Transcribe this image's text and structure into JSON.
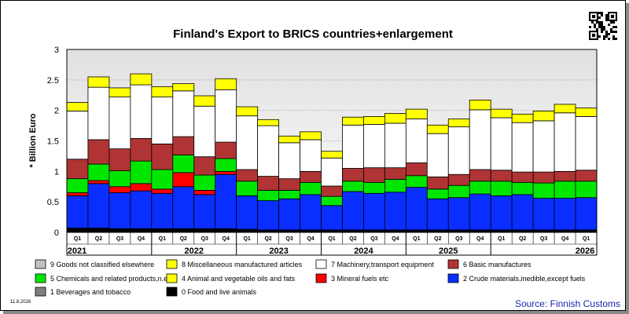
{
  "chart_data": {
    "type": "bar",
    "stacked": true,
    "title": "Finland's Export to BRICS countries+enlargement",
    "ylabel": "* Billion Euro",
    "ylim": [
      0,
      3
    ],
    "yticks": [
      "0",
      "0.5",
      "1",
      "1.5",
      "2",
      "2.5",
      "3"
    ],
    "grid": true,
    "legend_position": "bottom",
    "categories": [
      "Q1",
      "Q2",
      "Q3",
      "Q4",
      "Q1",
      "Q2",
      "Q3",
      "Q4",
      "Q1",
      "Q2",
      "Q3",
      "Q4",
      "Q1",
      "Q2",
      "Q3",
      "Q4",
      "Q1",
      "Q2",
      "Q3",
      "Q4",
      "Q1",
      "Q2",
      "Q3",
      "Q4",
      "Q1"
    ],
    "years": [
      {
        "label": "2021",
        "start": 0,
        "end": 3
      },
      {
        "label": "2022",
        "start": 4,
        "end": 7
      },
      {
        "label": "2023",
        "start": 8,
        "end": 11
      },
      {
        "label": "2024",
        "start": 12,
        "end": 15
      },
      {
        "label": "2025",
        "start": 16,
        "end": 19
      },
      {
        "label": "2026",
        "start": 20,
        "end": 24
      }
    ],
    "series": [
      {
        "name": "0 Food and live animals",
        "color": "#000000",
        "values": [
          0.06,
          0.06,
          0.05,
          0.05,
          0.05,
          0.05,
          0.05,
          0.05,
          0.04,
          0.03,
          0.03,
          0.03,
          0.03,
          0.03,
          0.03,
          0.03,
          0.03,
          0.03,
          0.03,
          0.03,
          0.03,
          0.03,
          0.03,
          0.03,
          0.03
        ]
      },
      {
        "name": "1 Beverages and tobacco",
        "color": "#7f7f7f",
        "values": [
          0.01,
          0.01,
          0.01,
          0.01,
          0.01,
          0.01,
          0.01,
          0.01,
          0.01,
          0.01,
          0.01,
          0.01,
          0.01,
          0.01,
          0.01,
          0.01,
          0.01,
          0.01,
          0.01,
          0.01,
          0.01,
          0.01,
          0.01,
          0.01,
          0.01
        ]
      },
      {
        "name": "2 Crude materials,inedible,except fuels",
        "color": "#0a2eff",
        "values": [
          0.53,
          0.73,
          0.59,
          0.62,
          0.58,
          0.69,
          0.56,
          0.89,
          0.55,
          0.48,
          0.51,
          0.58,
          0.4,
          0.63,
          0.6,
          0.62,
          0.7,
          0.51,
          0.53,
          0.59,
          0.56,
          0.58,
          0.52,
          0.52,
          0.53
        ]
      },
      {
        "name": "3 Mineral fuels etc",
        "color": "#ff0000",
        "values": [
          0.05,
          0.05,
          0.1,
          0.12,
          0.07,
          0.23,
          0.07,
          0.05,
          0.0,
          0.0,
          0.0,
          0.0,
          0.0,
          0.0,
          0.0,
          0.0,
          0.0,
          0.0,
          0.0,
          0.0,
          0.0,
          0.0,
          0.0,
          0.0,
          0.0
        ]
      },
      {
        "name": "4 Animal and vegetable oils and fats",
        "color": "#ffff00",
        "values": [
          0.0,
          0.0,
          0.0,
          0.0,
          0.0,
          0.0,
          0.0,
          0.0,
          0.0,
          0.0,
          0.0,
          0.0,
          0.0,
          0.0,
          0.0,
          0.0,
          0.0,
          0.0,
          0.0,
          0.0,
          0.0,
          0.0,
          0.0,
          0.0,
          0.0
        ]
      },
      {
        "name": "5 Chemicals and related products,n.e.s.",
        "color": "#00e600",
        "values": [
          0.23,
          0.27,
          0.26,
          0.37,
          0.32,
          0.29,
          0.25,
          0.21,
          0.24,
          0.17,
          0.14,
          0.2,
          0.15,
          0.17,
          0.18,
          0.21,
          0.19,
          0.16,
          0.2,
          0.21,
          0.24,
          0.2,
          0.25,
          0.28,
          0.27
        ]
      },
      {
        "name": "6 Basic manufactures",
        "color": "#b03434",
        "values": [
          0.32,
          0.4,
          0.36,
          0.37,
          0.42,
          0.3,
          0.3,
          0.27,
          0.19,
          0.23,
          0.19,
          0.18,
          0.17,
          0.21,
          0.24,
          0.19,
          0.21,
          0.2,
          0.18,
          0.19,
          0.18,
          0.17,
          0.18,
          0.16,
          0.18
        ]
      },
      {
        "name": "7 Machinery,transport equipment",
        "color": "#ffffff",
        "values": [
          0.79,
          0.86,
          0.85,
          0.88,
          0.77,
          0.75,
          0.83,
          0.86,
          0.88,
          0.83,
          0.59,
          0.52,
          0.46,
          0.71,
          0.71,
          0.73,
          0.72,
          0.71,
          0.78,
          0.98,
          0.86,
          0.81,
          0.84,
          0.96,
          0.88
        ]
      },
      {
        "name": "8 Miscellaneous manufactured articles",
        "color": "#ffff00",
        "values": [
          0.14,
          0.17,
          0.15,
          0.18,
          0.17,
          0.12,
          0.17,
          0.18,
          0.15,
          0.1,
          0.11,
          0.13,
          0.11,
          0.13,
          0.13,
          0.16,
          0.16,
          0.14,
          0.13,
          0.16,
          0.14,
          0.14,
          0.16,
          0.14,
          0.14
        ]
      },
      {
        "name": "9 Goods not classified elsewhere",
        "color": "#c0c0c0",
        "values": [
          0.0,
          0.0,
          0.0,
          0.0,
          0.0,
          0.0,
          0.0,
          0.0,
          0.0,
          0.0,
          0.0,
          0.0,
          0.0,
          0.0,
          0.0,
          0.0,
          0.0,
          0.0,
          0.0,
          0.0,
          0.0,
          0.0,
          0.0,
          0.0,
          0.0
        ]
      }
    ],
    "legend_order": [
      9,
      8,
      7,
      6,
      5,
      4,
      3,
      2,
      1,
      0
    ]
  },
  "footer": {
    "source": "Source: Finnish Customs",
    "date": "11.8.2026"
  },
  "colors": {
    "plot_top": "#e0e0e0",
    "plot_bottom": "#ffffff",
    "grid": "#a0a0a0"
  }
}
